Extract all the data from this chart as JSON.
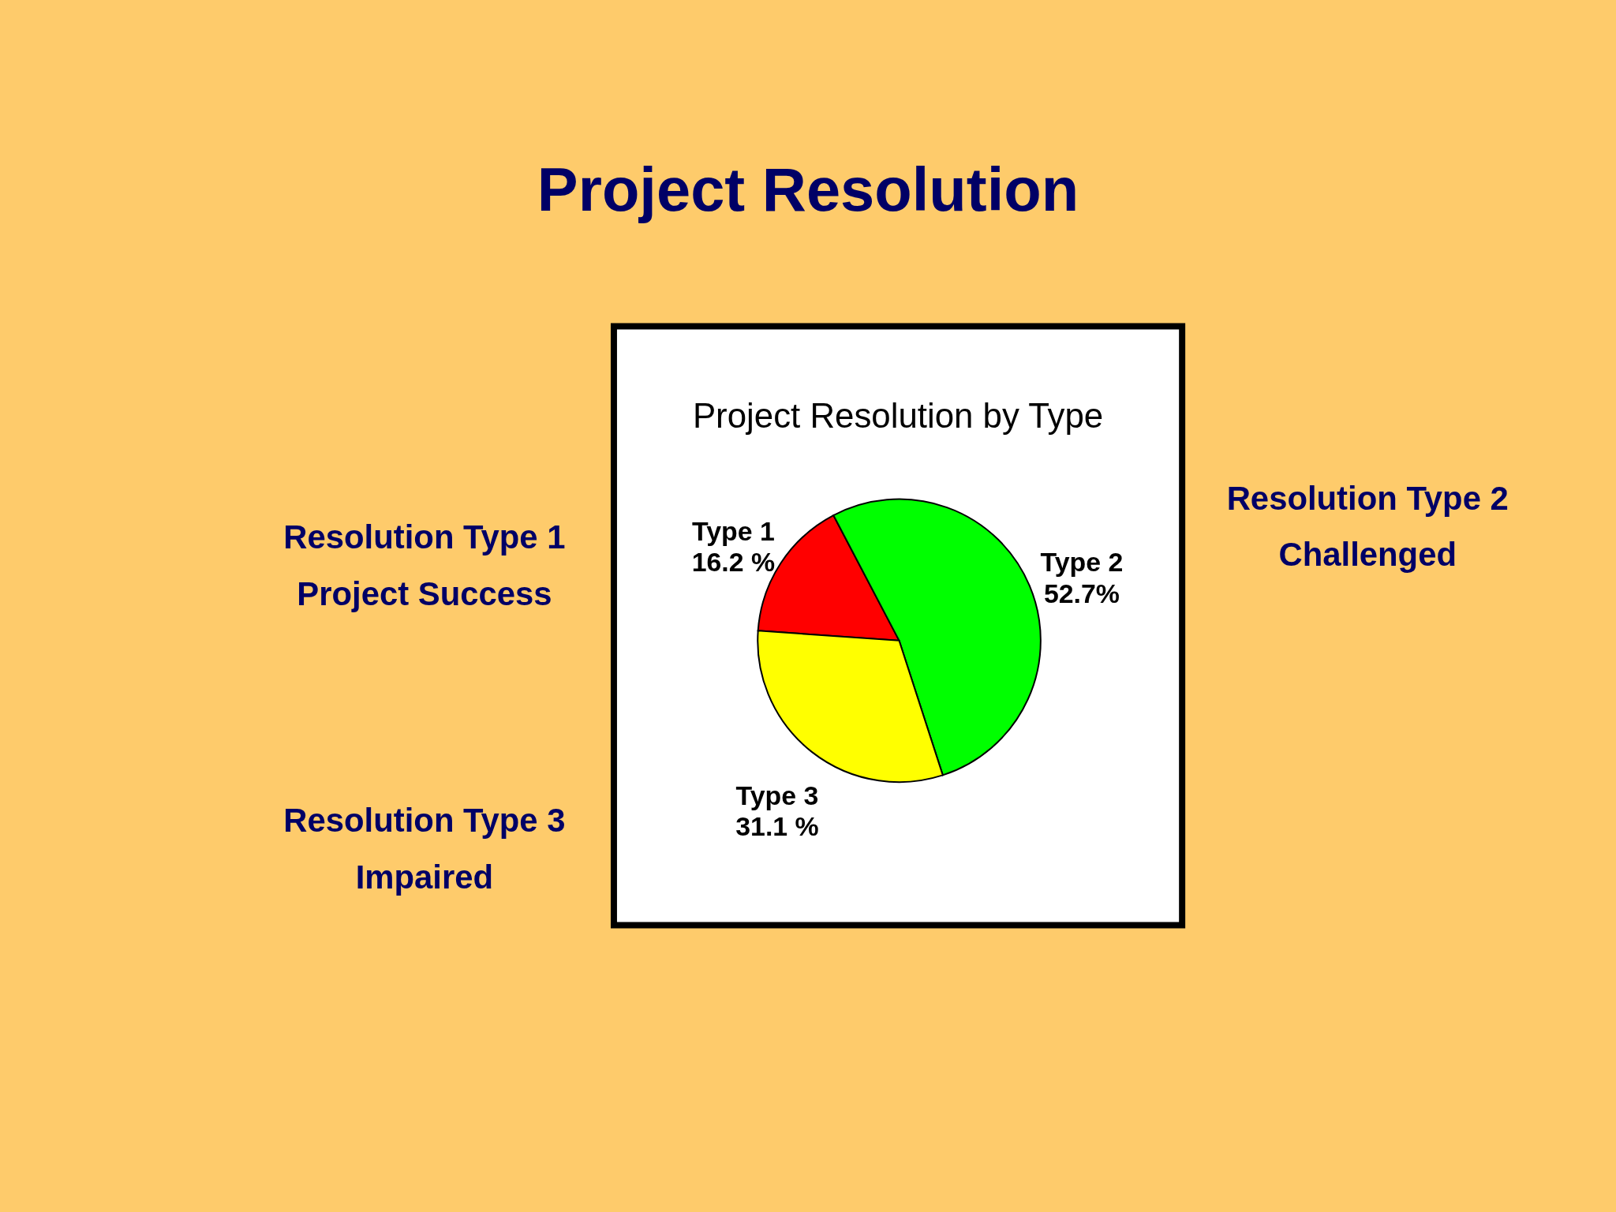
{
  "chart_data": {
    "type": "pie",
    "title": "Project Resolution",
    "subtitle": "Project Resolution by Type",
    "categories": [
      "Type 1",
      "Type 2",
      "Type 3"
    ],
    "values": [
      16.2,
      52.7,
      31.1
    ],
    "value_labels": [
      "16.2 %",
      "52.7%",
      "31.1 %"
    ],
    "colors": [
      "#ff0000",
      "#00ff00",
      "#ffff00"
    ],
    "annotations": [
      "Resolution Type 1\nProject Success",
      "Resolution Type 2\nChallenged",
      "Resolution Type 3\nImpaired"
    ]
  }
}
